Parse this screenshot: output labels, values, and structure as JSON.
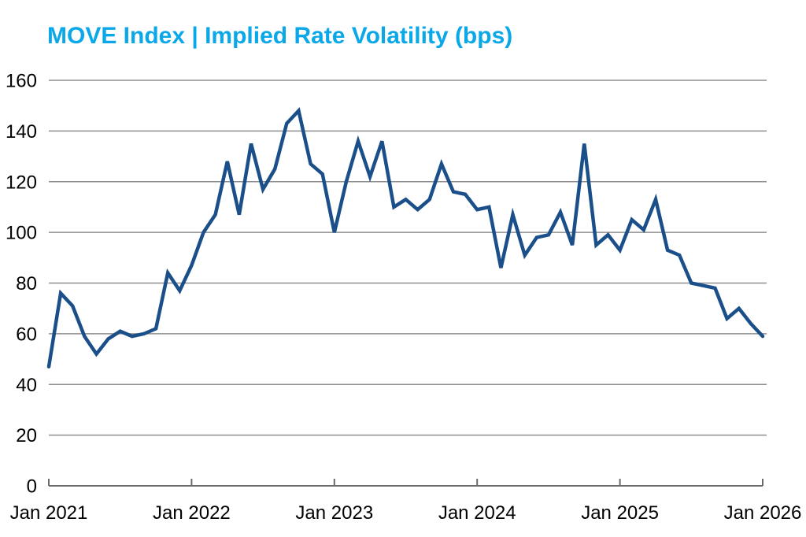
{
  "title": "MOVE Index | Implied Rate Volatility (bps)",
  "colors": {
    "title": "#0AA8E8",
    "line": "#1B4F8A",
    "grid": "#8F8F8F",
    "axis": "#6B6B6B",
    "tick_label": "#000000",
    "background": "#FFFFFF"
  },
  "chart_data": {
    "type": "line",
    "title": "MOVE Index | Implied Rate Volatility (bps)",
    "xlabel": "",
    "ylabel": "",
    "ylim": [
      0,
      160
    ],
    "y_ticks": [
      0,
      20,
      40,
      60,
      80,
      100,
      120,
      140,
      160
    ],
    "x_tick_labels": [
      "Jan 2021",
      "Jan 2022",
      "Jan 2023",
      "Jan 2024",
      "Jan 2025",
      "Jan 2026"
    ],
    "grid": "horizontal-only",
    "legend": "none",
    "series": [
      {
        "name": "MOVE Index",
        "x": [
          "2021-01",
          "2021-02",
          "2021-03",
          "2021-04",
          "2021-05",
          "2021-06",
          "2021-07",
          "2021-08",
          "2021-09",
          "2021-10",
          "2021-11",
          "2021-12",
          "2022-01",
          "2022-02",
          "2022-03",
          "2022-04",
          "2022-05",
          "2022-06",
          "2022-07",
          "2022-08",
          "2022-09",
          "2022-10",
          "2022-11",
          "2022-12",
          "2023-01",
          "2023-02",
          "2023-03",
          "2023-04",
          "2023-05",
          "2023-06",
          "2023-07",
          "2023-08",
          "2023-09",
          "2023-10",
          "2023-11",
          "2023-12",
          "2024-01",
          "2024-02",
          "2024-03",
          "2024-04",
          "2024-05",
          "2024-06",
          "2024-07",
          "2024-08",
          "2024-09",
          "2024-10",
          "2024-11",
          "2024-12",
          "2025-01",
          "2025-02",
          "2025-03",
          "2025-04",
          "2025-05",
          "2025-06",
          "2025-07",
          "2025-08",
          "2025-09",
          "2025-10",
          "2025-11",
          "2025-12",
          "2026-01"
        ],
        "values": [
          47,
          76,
          71,
          59,
          52,
          58,
          61,
          59,
          60,
          62,
          84,
          77,
          87,
          100,
          107,
          128,
          107,
          135,
          117,
          125,
          143,
          148,
          127,
          123,
          100,
          120,
          136,
          122,
          136,
          110,
          113,
          109,
          113,
          127,
          116,
          115,
          109,
          110,
          86,
          107,
          91,
          98,
          99,
          108,
          95,
          135,
          95,
          99,
          93,
          105,
          101,
          113,
          93,
          91,
          80,
          79,
          78,
          66,
          70,
          64,
          59
        ]
      }
    ]
  }
}
